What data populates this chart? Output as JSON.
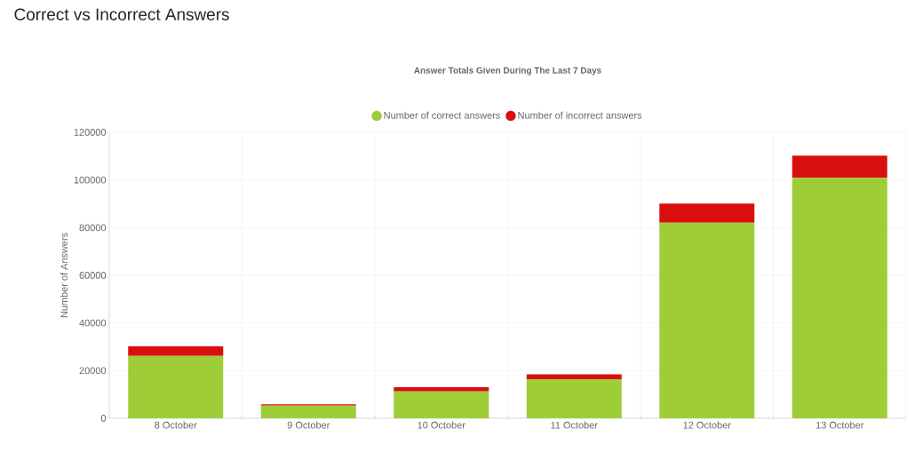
{
  "chart_data": {
    "type": "bar",
    "title": "Correct vs Incorrect Answers",
    "subtitle": "Answer Totals Given During The Last 7 Days",
    "categories": [
      "8 October",
      "9 October",
      "10 October",
      "11 October",
      "12 October",
      "13 October"
    ],
    "series": [
      {
        "name": "Number of correct answers",
        "color": "#9ecd38",
        "values": [
          26200,
          5300,
          11300,
          16400,
          82100,
          100900
        ]
      },
      {
        "name": "Number of incorrect answers",
        "color": "#d90f0f",
        "values": [
          4000,
          600,
          1700,
          2000,
          8000,
          9300
        ]
      }
    ],
    "stacked": true,
    "ylabel": "Number of Answers",
    "ylim": [
      0,
      120000
    ],
    "yticks": [
      0,
      20000,
      40000,
      60000,
      80000,
      100000,
      120000
    ],
    "grid": true,
    "legend": "top"
  }
}
